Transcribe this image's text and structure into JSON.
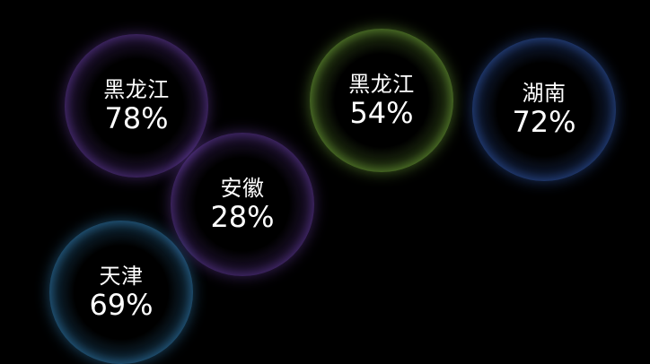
{
  "chart_data": {
    "type": "bubble",
    "colors": {
      "purple": "#7c4bc4",
      "green": "#8fd24a",
      "blue": "#3f6fd8",
      "lightblue": "#3f9ee0"
    },
    "points": [
      {
        "label": "黑龙江",
        "value": "78%",
        "color": "purple"
      },
      {
        "label": "安徽",
        "value": "28%",
        "color": "purple"
      },
      {
        "label": "天津",
        "value": "69%",
        "color": "lightblue"
      },
      {
        "label": "黑龙江",
        "value": "54%",
        "color": "green"
      },
      {
        "label": "湖南",
        "value": "72%",
        "color": "blue"
      }
    ]
  }
}
